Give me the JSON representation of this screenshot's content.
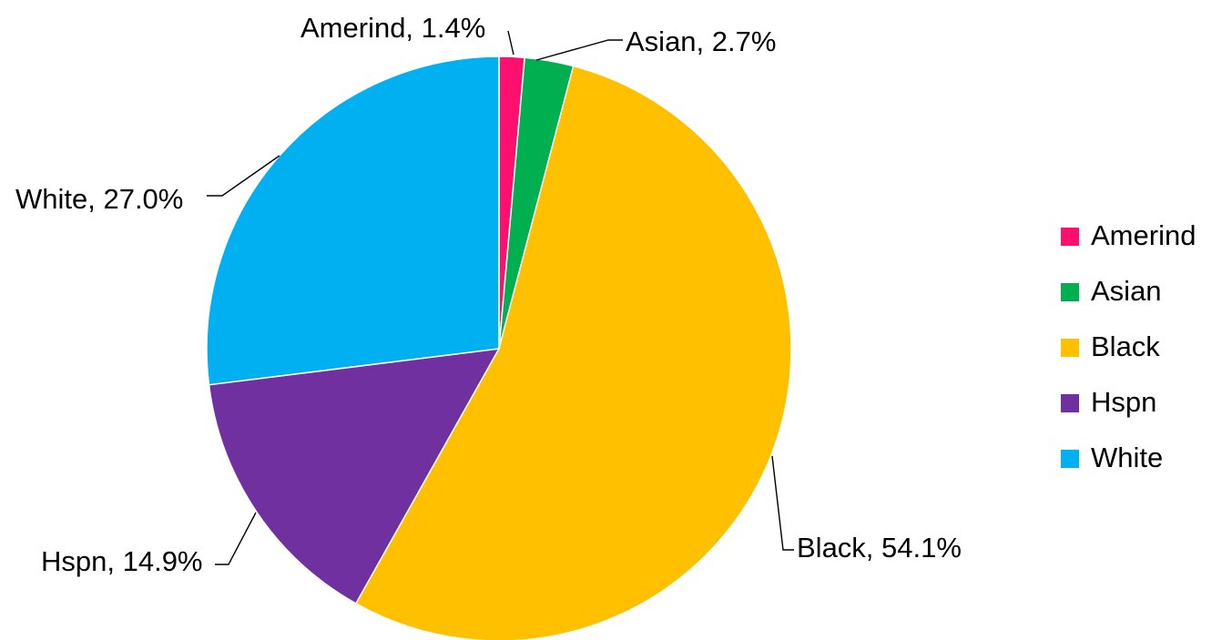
{
  "chart_data": {
    "type": "pie",
    "title": "",
    "categories": [
      "Amerind",
      "Asian",
      "Black",
      "Hspn",
      "White"
    ],
    "values": [
      1.4,
      2.7,
      54.1,
      14.9,
      27.0
    ],
    "unit": "%",
    "colors": [
      "#ff0f6e",
      "#00b050",
      "#ffc000",
      "#7030a0",
      "#00b0f0"
    ],
    "data_labels": [
      "Amerind, 1.4%",
      "Asian, 2.7%",
      "Black, 54.1%",
      "Hspn, 14.9%",
      "White, 27.0%"
    ],
    "legend": {
      "position": "right",
      "entries": [
        "Amerind",
        "Asian",
        "Black",
        "Hspn",
        "White"
      ]
    },
    "start_angle": "12 o'clock",
    "direction": "clockwise"
  }
}
